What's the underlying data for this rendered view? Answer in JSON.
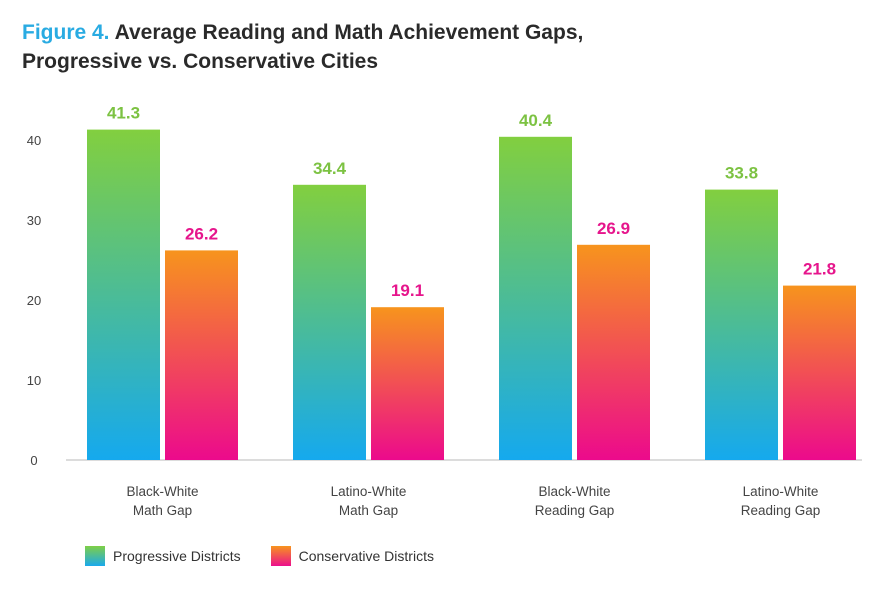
{
  "title": {
    "figure_label": "Figure 4.",
    "line1": "Average Reading and Math Achievement Gaps,",
    "line2": "Progressive vs. Conservative Cities"
  },
  "legend": {
    "progressive": "Progressive Districts",
    "conservative": "Conservative Districts"
  },
  "colors": {
    "progressive_top": "#82cf3f",
    "progressive_bottom": "#15a9ee",
    "conservative_top": "#f7941d",
    "conservative_bottom": "#ec0a8c",
    "progressive_label": "#7cc242",
    "conservative_label": "#e6158c",
    "axis": "#d0d0d0",
    "tick_text": "#444444"
  },
  "chart_data": {
    "type": "bar",
    "title": "Average Reading and Math Achievement Gaps, Progressive vs. Conservative Cities",
    "categories": [
      [
        "Black-White",
        "Math Gap"
      ],
      [
        "Latino-White",
        "Math Gap"
      ],
      [
        "Black-White",
        "Reading Gap"
      ],
      [
        "Latino-White",
        "Reading Gap"
      ]
    ],
    "series": [
      {
        "name": "Progressive Districts",
        "values": [
          41.3,
          34.4,
          40.4,
          33.8
        ],
        "labels": [
          "41.3",
          "34.4",
          "40.4",
          "33.8"
        ]
      },
      {
        "name": "Conservative Districts",
        "values": [
          26.2,
          19.1,
          26.9,
          21.8
        ],
        "labels": [
          "26.2",
          "19.1",
          "26.9",
          "21.8"
        ]
      }
    ],
    "yticks": [
      "0",
      "10",
      "20",
      "30",
      "40"
    ],
    "ylim": [
      0,
      50
    ],
    "xlabel": "",
    "ylabel": "",
    "grid": false,
    "legend_position": "bottom-left"
  }
}
